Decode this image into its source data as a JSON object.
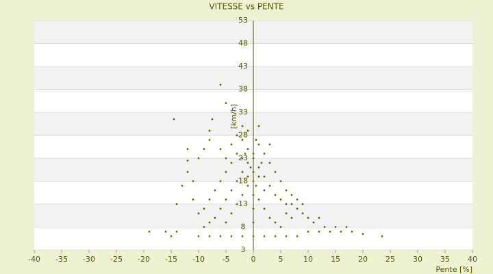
{
  "chart_data": {
    "type": "scatter",
    "title": "VITESSE vs PENTE",
    "x_label": "Pente [%]",
    "y_label": "[km/h]",
    "x": [
      -6,
      -14.5,
      -5,
      -8,
      -7.5,
      -12,
      -12,
      -12,
      -11,
      -13,
      -14,
      -11,
      -10,
      -9,
      -8,
      -19,
      -16,
      -15,
      -14,
      -10,
      -8,
      -6,
      -4,
      -2,
      0,
      2,
      4,
      6,
      8,
      10,
      12,
      14,
      16,
      18,
      20,
      23.5,
      13,
      11,
      12,
      9,
      8,
      7,
      6,
      5,
      4,
      3,
      2,
      1,
      0,
      -1,
      -2,
      -3,
      -1,
      1,
      -2,
      0,
      0,
      0,
      0,
      0,
      0,
      1,
      2,
      3,
      4,
      5,
      6,
      7,
      8,
      9,
      10,
      -1,
      -2,
      -3,
      -4,
      -5,
      -6,
      -7,
      -8,
      -9,
      -3,
      -4,
      -5,
      -6,
      -7,
      -8,
      -9,
      -10,
      -1,
      -2,
      -3,
      -4,
      -5,
      1,
      2,
      3,
      4,
      5,
      -1,
      1,
      2,
      -2,
      3,
      -4,
      0.5,
      -0.5,
      1.5,
      -1.5,
      0.5,
      6,
      7,
      -6,
      -5,
      15,
      17
    ],
    "values": [
      39,
      31.5,
      35,
      29,
      31.5,
      25,
      22.5,
      20,
      18,
      17,
      13,
      14,
      23,
      25,
      27,
      7,
      7,
      6,
      7,
      6,
      6,
      6,
      6,
      6,
      6,
      6,
      6,
      6,
      6,
      7,
      7,
      7,
      7,
      7,
      6.5,
      6,
      8,
      9,
      10,
      11,
      12,
      13,
      13,
      14,
      15,
      17,
      19,
      21,
      23,
      25,
      27,
      28,
      29,
      30,
      30,
      24,
      20,
      18,
      15,
      12,
      9,
      26,
      24,
      22,
      20,
      18,
      16,
      15,
      14,
      13,
      10,
      22,
      20,
      18,
      16,
      14,
      12,
      10,
      9,
      8,
      24,
      22,
      20,
      18,
      16,
      14,
      12,
      11,
      17,
      15,
      13,
      11,
      9,
      14,
      12,
      10,
      9,
      8,
      19,
      19,
      16,
      23,
      26,
      26,
      27,
      21,
      22,
      24,
      17,
      11,
      10,
      25,
      23,
      8,
      8
    ],
    "color": "#666600",
    "xlim": [
      -40,
      40
    ],
    "xticks": [
      -40,
      -35,
      -30,
      -25,
      -20,
      -15,
      -10,
      -5,
      0,
      5,
      10,
      15,
      20,
      25,
      30,
      35,
      40
    ],
    "ylim": [
      3,
      53
    ],
    "yticks": [
      3,
      8,
      13,
      18,
      23,
      28,
      33,
      38,
      43,
      48,
      53
    ],
    "grid": true
  }
}
